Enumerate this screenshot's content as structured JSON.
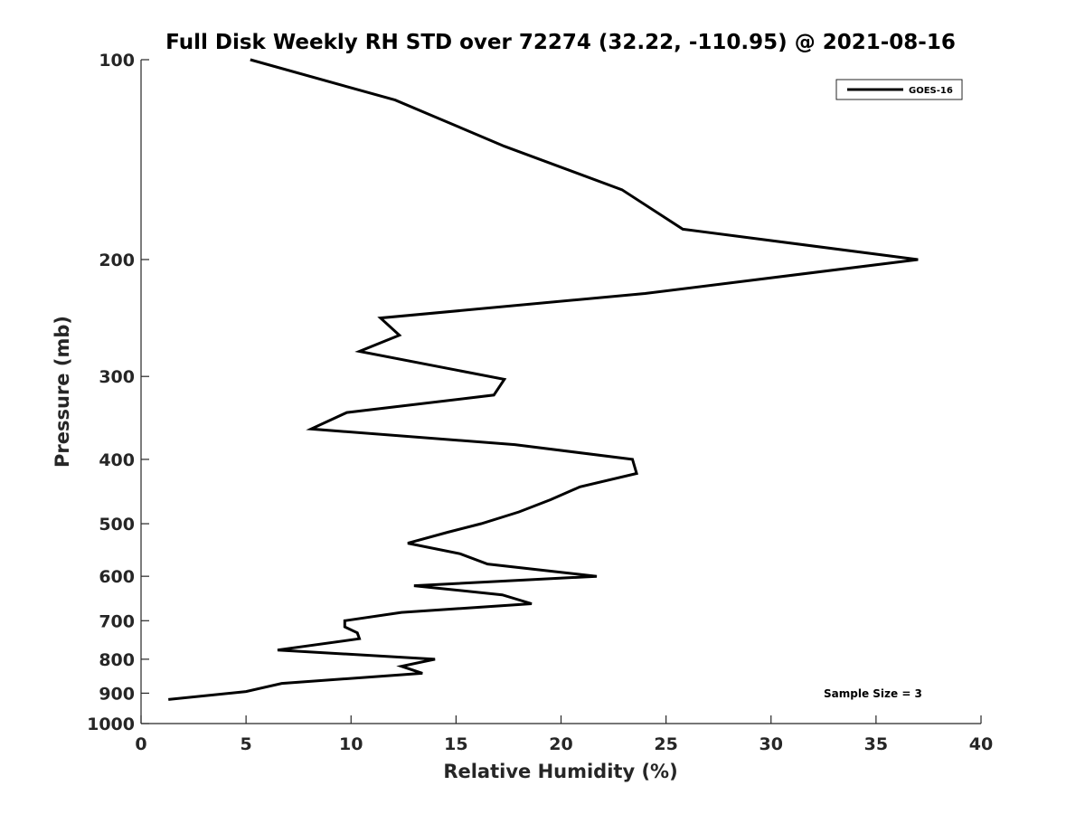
{
  "chart_data": {
    "type": "line",
    "title": "Full Disk Weekly RH STD over 72274 (32.22, -110.95) @ 2021-08-16",
    "xlabel": "Relative Humidity (%)",
    "ylabel": "Pressure (mb)",
    "xlim": [
      0,
      40
    ],
    "ylim": [
      100,
      1000
    ],
    "yscale": "log",
    "y_reversed": true,
    "xticks": [
      0,
      5,
      10,
      15,
      20,
      25,
      30,
      35,
      40
    ],
    "yticks": [
      100,
      200,
      300,
      400,
      500,
      600,
      700,
      800,
      900,
      1000
    ],
    "legend": {
      "location": "top-right",
      "entries": [
        "GOES-16"
      ]
    },
    "annotation": "Sample Size = 3",
    "grid": false,
    "series": [
      {
        "name": "GOES-16",
        "color": "#000000",
        "x": [
          5.2,
          12.1,
          17.3,
          22.9,
          25.8,
          37.0,
          24.0,
          11.4,
          12.3,
          10.4,
          17.3,
          16.8,
          9.8,
          8.1,
          17.8,
          23.4,
          23.6,
          20.9,
          19.5,
          18.0,
          16.2,
          14.6,
          12.7,
          15.2,
          16.5,
          21.7,
          13.0,
          17.2,
          18.6,
          12.4,
          9.7,
          9.7,
          10.3,
          10.4,
          6.5,
          14.0,
          12.4,
          13.4,
          6.7,
          5.0,
          1.3
        ],
        "y": [
          100,
          115,
          135,
          157,
          180,
          200,
          225,
          245,
          260,
          275,
          303,
          320,
          340,
          360,
          380,
          400,
          420,
          440,
          460,
          480,
          500,
          515,
          535,
          555,
          575,
          600,
          620,
          640,
          660,
          680,
          700,
          715,
          730,
          745,
          775,
          800,
          820,
          840,
          870,
          895,
          920
        ]
      }
    ]
  }
}
